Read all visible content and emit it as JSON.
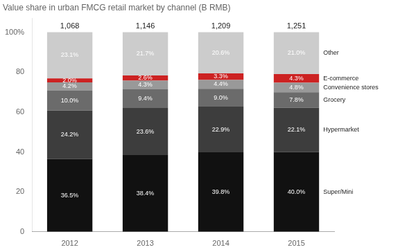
{
  "chart_data": {
    "type": "bar",
    "title": "Value share in urban FMCG retail market by channel (B RMB)",
    "categories": [
      "2012",
      "2013",
      "2014",
      "2015"
    ],
    "stacked": true,
    "data_labels": true,
    "grid": false,
    "series": [
      {
        "name": "Super/Mini",
        "color": "#111111",
        "values": [
          36.5,
          38.4,
          39.8,
          40.0
        ],
        "value_labels": [
          "36.5%",
          "38.4%",
          "39.8%",
          "40.0%"
        ]
      },
      {
        "name": "Hypermarket",
        "color": "#3d3d3d",
        "values": [
          24.2,
          23.6,
          22.9,
          22.1
        ],
        "value_labels": [
          "24.2%",
          "23.6%",
          "22.9%",
          "22.1%"
        ]
      },
      {
        "name": "Grocery",
        "color": "#6b6b6b",
        "values": [
          10.0,
          9.4,
          9.0,
          7.8
        ],
        "value_labels": [
          "10.0%",
          "9.4%",
          "9.0%",
          "7.8%"
        ]
      },
      {
        "name": "Convenience stores",
        "color": "#999999",
        "values": [
          4.2,
          4.3,
          4.4,
          4.8
        ],
        "value_labels": [
          "4.2%",
          "4.3%",
          "4.4%",
          "4.8%"
        ]
      },
      {
        "name": "E-commerce",
        "color": "#cc2222",
        "values": [
          2.0,
          2.6,
          3.3,
          4.3
        ],
        "value_labels": [
          "2.0%",
          "2.6%",
          "3.3%",
          "4.3%"
        ]
      },
      {
        "name": "Other",
        "color": "#cccccc",
        "values": [
          23.1,
          21.7,
          20.6,
          21.0
        ],
        "value_labels": [
          "23.1%",
          "21.7%",
          "20.6%",
          "21.0%"
        ]
      }
    ],
    "annotations": [
      {
        "x": "2012",
        "text": "1,068"
      },
      {
        "x": "2013",
        "text": "1,146"
      },
      {
        "x": "2014",
        "text": "1,209"
      },
      {
        "x": "2015",
        "text": "1,251"
      }
    ],
    "ylim": [
      0,
      107
    ],
    "yticks": [
      0,
      20,
      40,
      60,
      80,
      {
        "value": 100,
        "label": "100%"
      }
    ]
  }
}
